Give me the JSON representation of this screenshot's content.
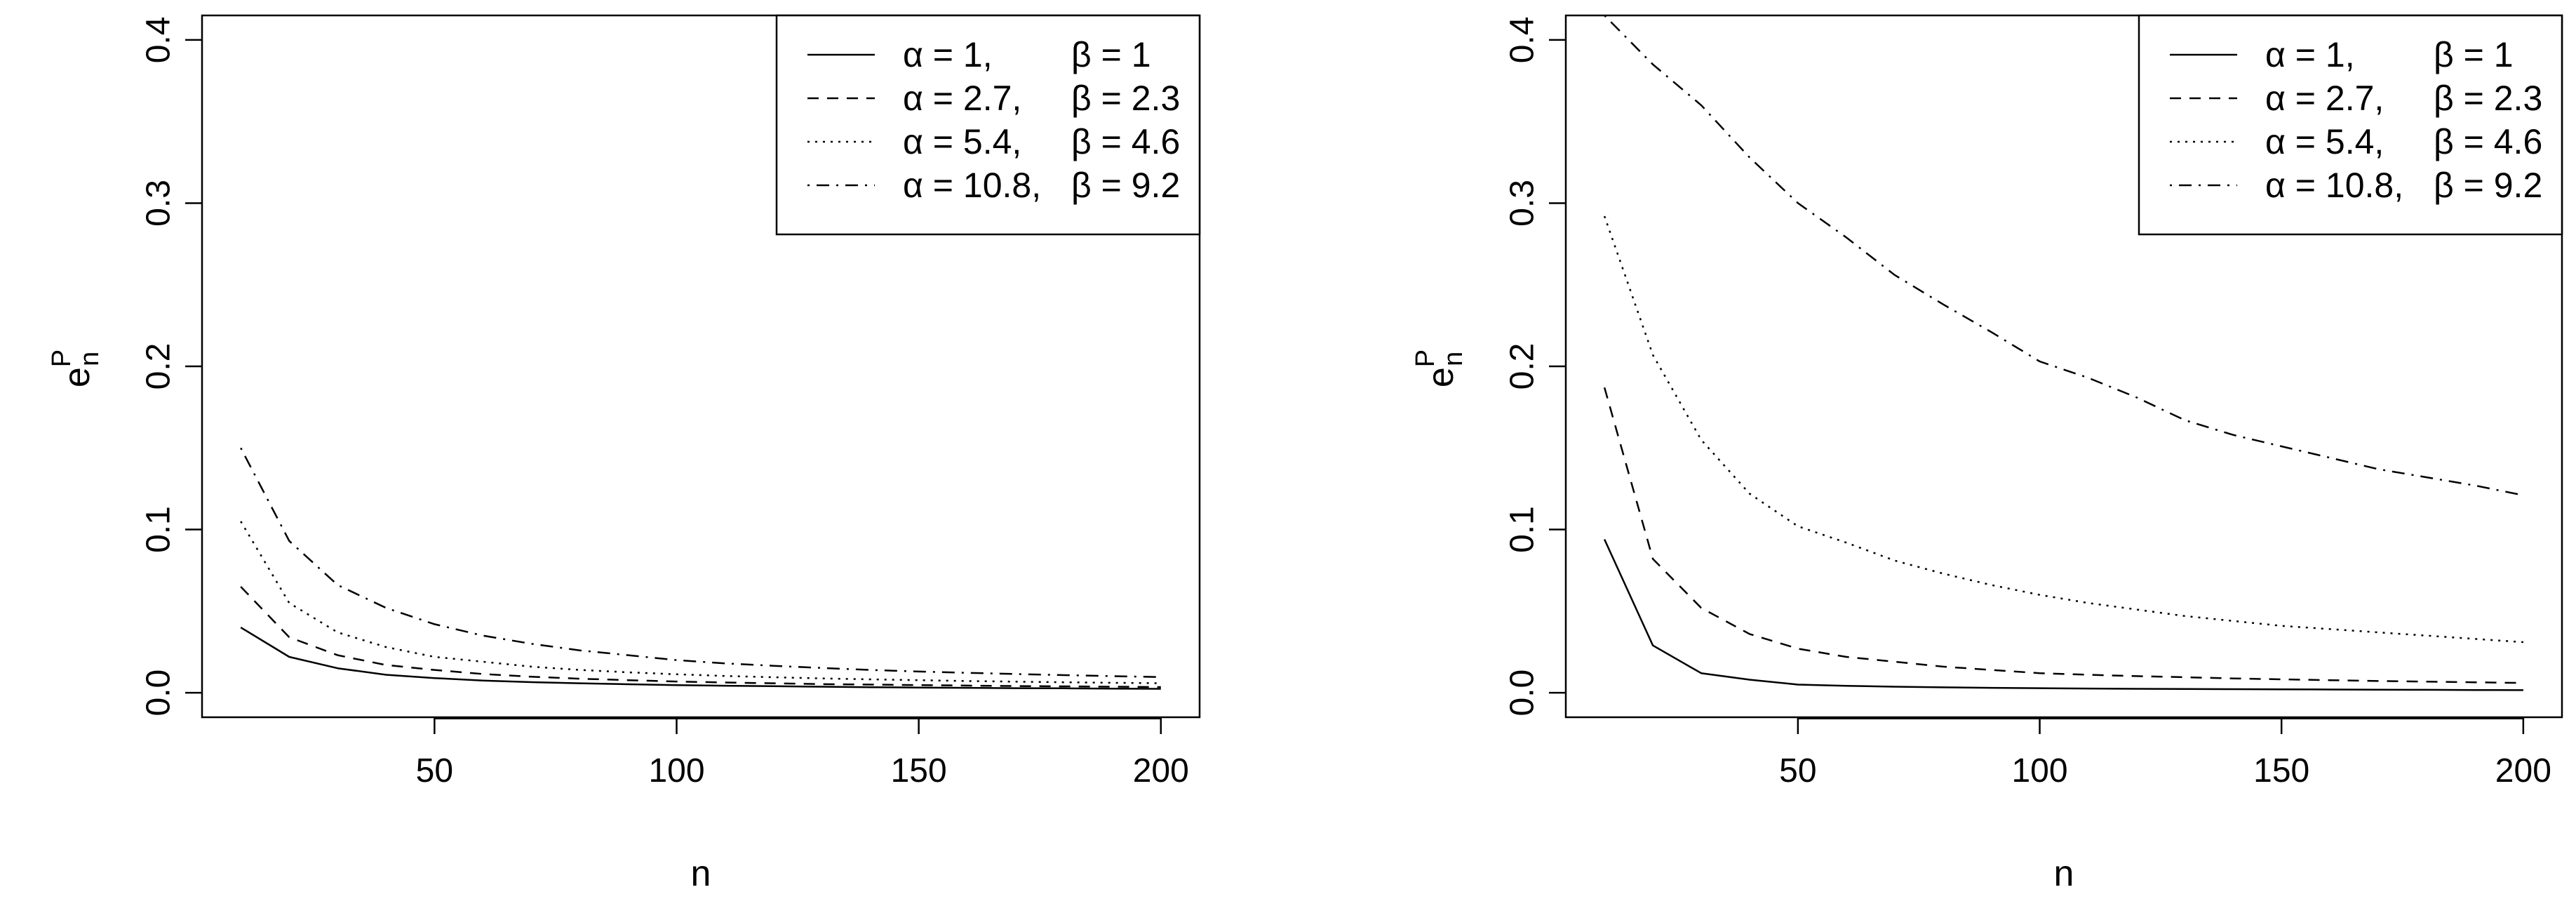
{
  "chart_data": [
    {
      "type": "line",
      "title": "",
      "xlabel": "n",
      "ylabel_base": "e",
      "ylabel_sup": "P",
      "ylabel_sub": "n",
      "xlim": [
        2,
        208
      ],
      "ylim": [
        -0.015,
        0.415
      ],
      "xticks": [
        50,
        100,
        150,
        200
      ],
      "xtick_labels": [
        "50",
        "100",
        "150",
        "200"
      ],
      "yticks": [
        0.0,
        0.1,
        0.2,
        0.3,
        0.4
      ],
      "ytick_labels": [
        "0.0",
        "0.1",
        "0.2",
        "0.3",
        "0.4"
      ],
      "grid": false,
      "legend_position": "top-right",
      "x": [
        10,
        20,
        30,
        40,
        50,
        60,
        70,
        80,
        90,
        100,
        110,
        120,
        130,
        140,
        150,
        160,
        170,
        180,
        190,
        200
      ],
      "series": [
        {
          "alpha_label": "α = 1,",
          "beta_label": "β = 1",
          "linestyle": "solid",
          "values": [
            0.04,
            0.022,
            0.015,
            0.011,
            0.009,
            0.0075,
            0.0065,
            0.0058,
            0.0052,
            0.0047,
            0.0043,
            0.004,
            0.0037,
            0.0034,
            0.0032,
            0.003,
            0.0028,
            0.0027,
            0.0025,
            0.0024
          ]
        },
        {
          "alpha_label": "α = 2.7,",
          "beta_label": "β = 2.3",
          "linestyle": "dashed",
          "values": [
            0.065,
            0.034,
            0.023,
            0.017,
            0.014,
            0.0115,
            0.0098,
            0.0086,
            0.0077,
            0.0069,
            0.0063,
            0.0058,
            0.0053,
            0.005,
            0.0047,
            0.0044,
            0.0041,
            0.0039,
            0.0037,
            0.0035
          ]
        },
        {
          "alpha_label": "α = 5.4,",
          "beta_label": "β = 4.6",
          "linestyle": "dotted",
          "values": [
            0.105,
            0.055,
            0.037,
            0.028,
            0.022,
            0.019,
            0.016,
            0.014,
            0.0125,
            0.0113,
            0.0103,
            0.0095,
            0.0088,
            0.0082,
            0.0077,
            0.0072,
            0.0068,
            0.0064,
            0.0061,
            0.0058
          ]
        },
        {
          "alpha_label": "α = 10.8,",
          "beta_label": "β = 9.2",
          "linestyle": "dotdash",
          "values": [
            0.15,
            0.093,
            0.066,
            0.052,
            0.042,
            0.035,
            0.03,
            0.026,
            0.023,
            0.02,
            0.018,
            0.0165,
            0.0152,
            0.014,
            0.013,
            0.0122,
            0.0115,
            0.0108,
            0.0102,
            0.0096
          ]
        }
      ]
    },
    {
      "type": "line",
      "title": "",
      "xlabel": "n",
      "ylabel_base": "e",
      "ylabel_sup": "P",
      "ylabel_sub": "n",
      "xlim": [
        2,
        208
      ],
      "ylim": [
        -0.015,
        0.415
      ],
      "xticks": [
        50,
        100,
        150,
        200
      ],
      "xtick_labels": [
        "50",
        "100",
        "150",
        "200"
      ],
      "yticks": [
        0.0,
        0.1,
        0.2,
        0.3,
        0.4
      ],
      "ytick_labels": [
        "0.0",
        "0.1",
        "0.2",
        "0.3",
        "0.4"
      ],
      "grid": false,
      "legend_position": "top-right",
      "x": [
        10,
        20,
        30,
        40,
        50,
        60,
        70,
        80,
        90,
        100,
        110,
        120,
        130,
        140,
        150,
        160,
        170,
        180,
        190,
        200
      ],
      "series": [
        {
          "alpha_label": "α = 1,",
          "beta_label": "β = 1",
          "linestyle": "solid",
          "values": [
            0.094,
            0.029,
            0.012,
            0.008,
            0.005,
            0.0042,
            0.0037,
            0.0033,
            0.003,
            0.0028,
            0.0026,
            0.0024,
            0.0023,
            0.0022,
            0.0021,
            0.002,
            0.0019,
            0.0018,
            0.0017,
            0.0016
          ]
        },
        {
          "alpha_label": "α = 2.7,",
          "beta_label": "β = 2.3",
          "linestyle": "dashed",
          "values": [
            0.187,
            0.082,
            0.052,
            0.036,
            0.027,
            0.022,
            0.019,
            0.016,
            0.014,
            0.012,
            0.011,
            0.0102,
            0.0095,
            0.0088,
            0.0082,
            0.0077,
            0.0072,
            0.0068,
            0.0064,
            0.006
          ]
        },
        {
          "alpha_label": "α = 5.4,",
          "beta_label": "β = 4.6",
          "linestyle": "dotted",
          "values": [
            0.292,
            0.207,
            0.155,
            0.122,
            0.102,
            0.092,
            0.081,
            0.073,
            0.066,
            0.06,
            0.055,
            0.051,
            0.047,
            0.044,
            0.041,
            0.039,
            0.037,
            0.035,
            0.033,
            0.031
          ]
        },
        {
          "alpha_label": "α = 10.8,",
          "beta_label": "β = 9.2",
          "linestyle": "dotdash",
          "values": [
            0.415,
            0.385,
            0.36,
            0.328,
            0.3,
            0.279,
            0.256,
            0.238,
            0.221,
            0.203,
            0.193,
            0.181,
            0.167,
            0.158,
            0.151,
            0.144,
            0.137,
            0.132,
            0.127,
            0.121
          ]
        }
      ]
    }
  ]
}
